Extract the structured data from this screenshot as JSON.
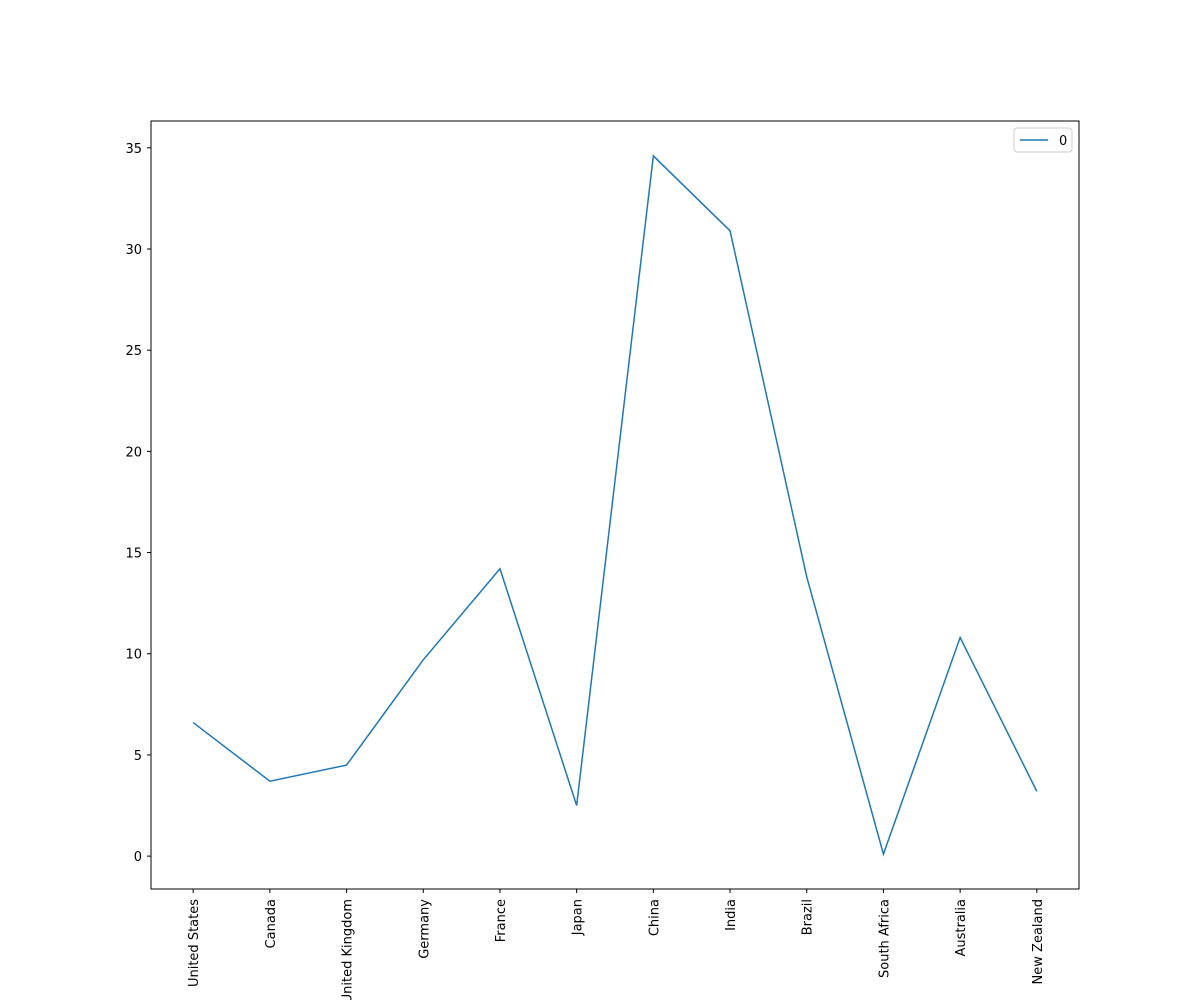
{
  "chart_data": {
    "type": "line",
    "categories": [
      "United States",
      "Canada",
      "United Kingdom",
      "Germany",
      "France",
      "Japan",
      "China",
      "India",
      "Brazil",
      "South Africa",
      "Australia",
      "New Zealand"
    ],
    "series": [
      {
        "name": "0",
        "color": "#1f77b4",
        "values": [
          6.6,
          3.7,
          4.5,
          9.7,
          14.2,
          2.5,
          34.6,
          30.9,
          13.8,
          0.1,
          10.8,
          3.2
        ]
      }
    ],
    "ylim": [
      -1.625,
      36.325
    ],
    "yticks": [
      0,
      5,
      10,
      15,
      20,
      25,
      30,
      35
    ],
    "legend": "upper right",
    "grid": false
  }
}
